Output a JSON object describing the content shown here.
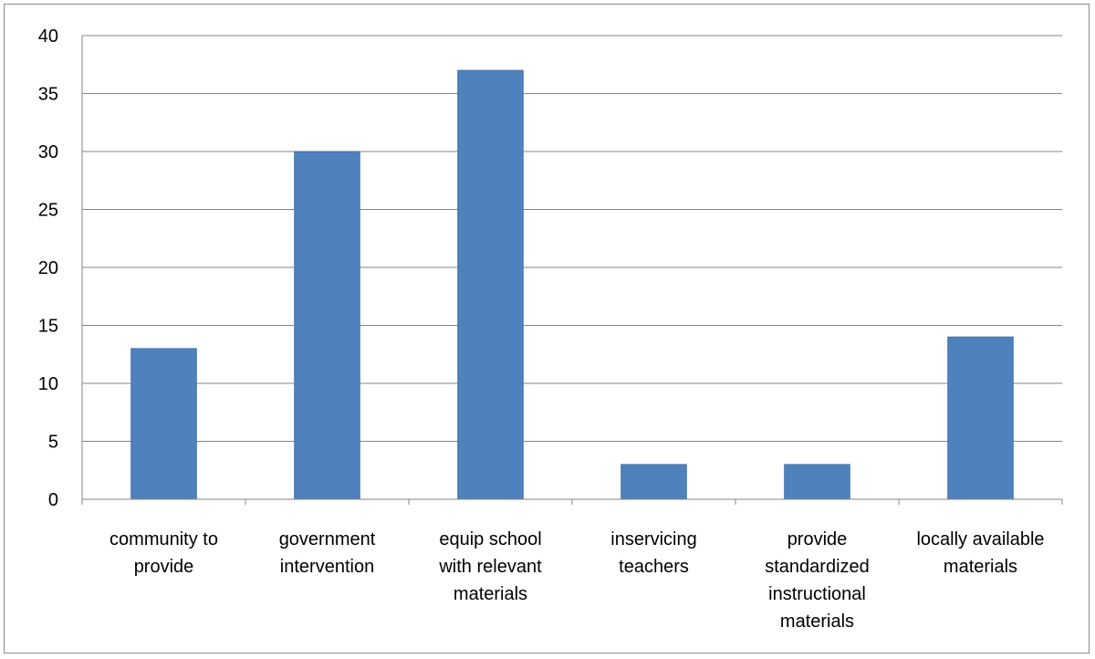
{
  "chart_data": {
    "type": "bar",
    "categories": [
      "community to provide",
      "government intervention",
      "equip school with relevant materials",
      "inservicing teachers",
      "provide standardized instructional materials",
      "locally available materials"
    ],
    "category_lines": [
      [
        "community to",
        "provide"
      ],
      [
        "government",
        "intervention"
      ],
      [
        "equip school",
        "with relevant",
        "materials"
      ],
      [
        "inservicing",
        "teachers"
      ],
      [
        "provide",
        "standardized",
        "instructional",
        "materials"
      ],
      [
        "locally available",
        "materials"
      ]
    ],
    "values": [
      13,
      30,
      37,
      3,
      3,
      14
    ],
    "ylim": [
      0,
      40
    ],
    "yticks": [
      0,
      5,
      10,
      15,
      20,
      25,
      30,
      35,
      40
    ],
    "title": "",
    "xlabel": "",
    "ylabel": "",
    "grid": true,
    "legend": "none",
    "colors": {
      "bar": "#4F81BD",
      "bar_edge": "#4573AC",
      "grid": "#868686",
      "axis": "#868686"
    }
  }
}
